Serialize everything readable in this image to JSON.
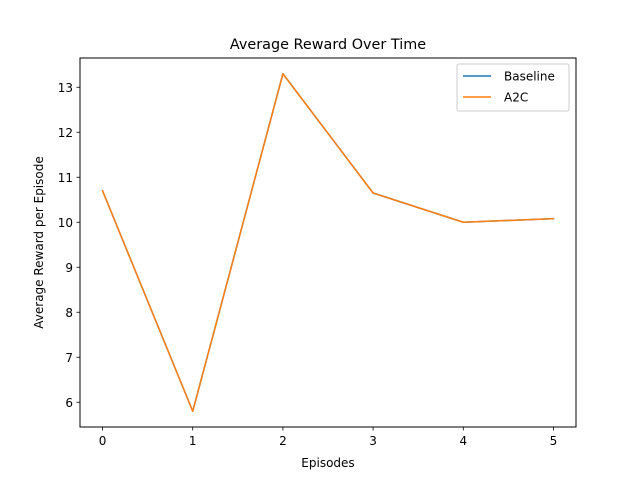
{
  "chart_data": {
    "type": "line",
    "title": "Average Reward Over Time",
    "xlabel": "Episodes",
    "ylabel": "Average Reward per Episode",
    "x": [
      0,
      1,
      2,
      3,
      4,
      5
    ],
    "xticks": [
      0,
      1,
      2,
      3,
      4,
      5
    ],
    "yticks": [
      6,
      7,
      8,
      9,
      10,
      11,
      12,
      13
    ],
    "xlim": [
      -0.25,
      5.25
    ],
    "ylim": [
      5.45,
      13.65
    ],
    "grid": false,
    "legend_position": "top-right",
    "series": [
      {
        "name": "Baseline",
        "color": "#1f77b4",
        "values": [
          10.7,
          5.8,
          13.3,
          10.65,
          10.0,
          10.08
        ]
      },
      {
        "name": "A2C",
        "color": "#ff7f0e",
        "values": [
          10.7,
          5.8,
          13.3,
          10.65,
          10.0,
          10.08
        ]
      }
    ]
  }
}
